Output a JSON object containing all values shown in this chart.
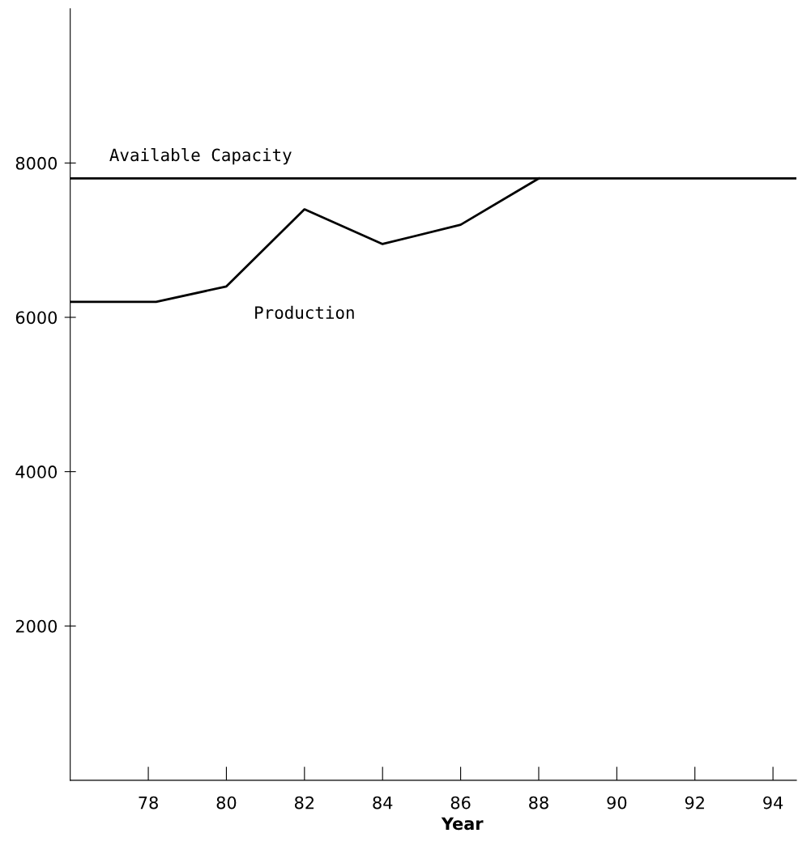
{
  "chart_data": {
    "type": "line",
    "xlabel": "Year",
    "series": [
      {
        "name": "Production",
        "color": "#000000",
        "x": [
          76,
          78.2,
          80,
          82,
          84,
          86,
          88
        ],
        "values": [
          6200,
          6200,
          6400,
          7400,
          6950,
          7200,
          7800
        ]
      }
    ],
    "ref_lines": [
      {
        "axis": "y",
        "value": 7800,
        "label": "Available Capacity",
        "color": "#000000"
      }
    ],
    "xlim": [
      76,
      94.6
    ],
    "ylim": [
      0,
      10000
    ],
    "xticks": [
      78,
      80,
      82,
      84,
      86,
      88,
      90,
      92,
      94
    ],
    "yticks": [
      2000,
      4000,
      6000,
      8000
    ],
    "grid": false,
    "legend": false,
    "marker": "none",
    "line_style": "solid"
  }
}
